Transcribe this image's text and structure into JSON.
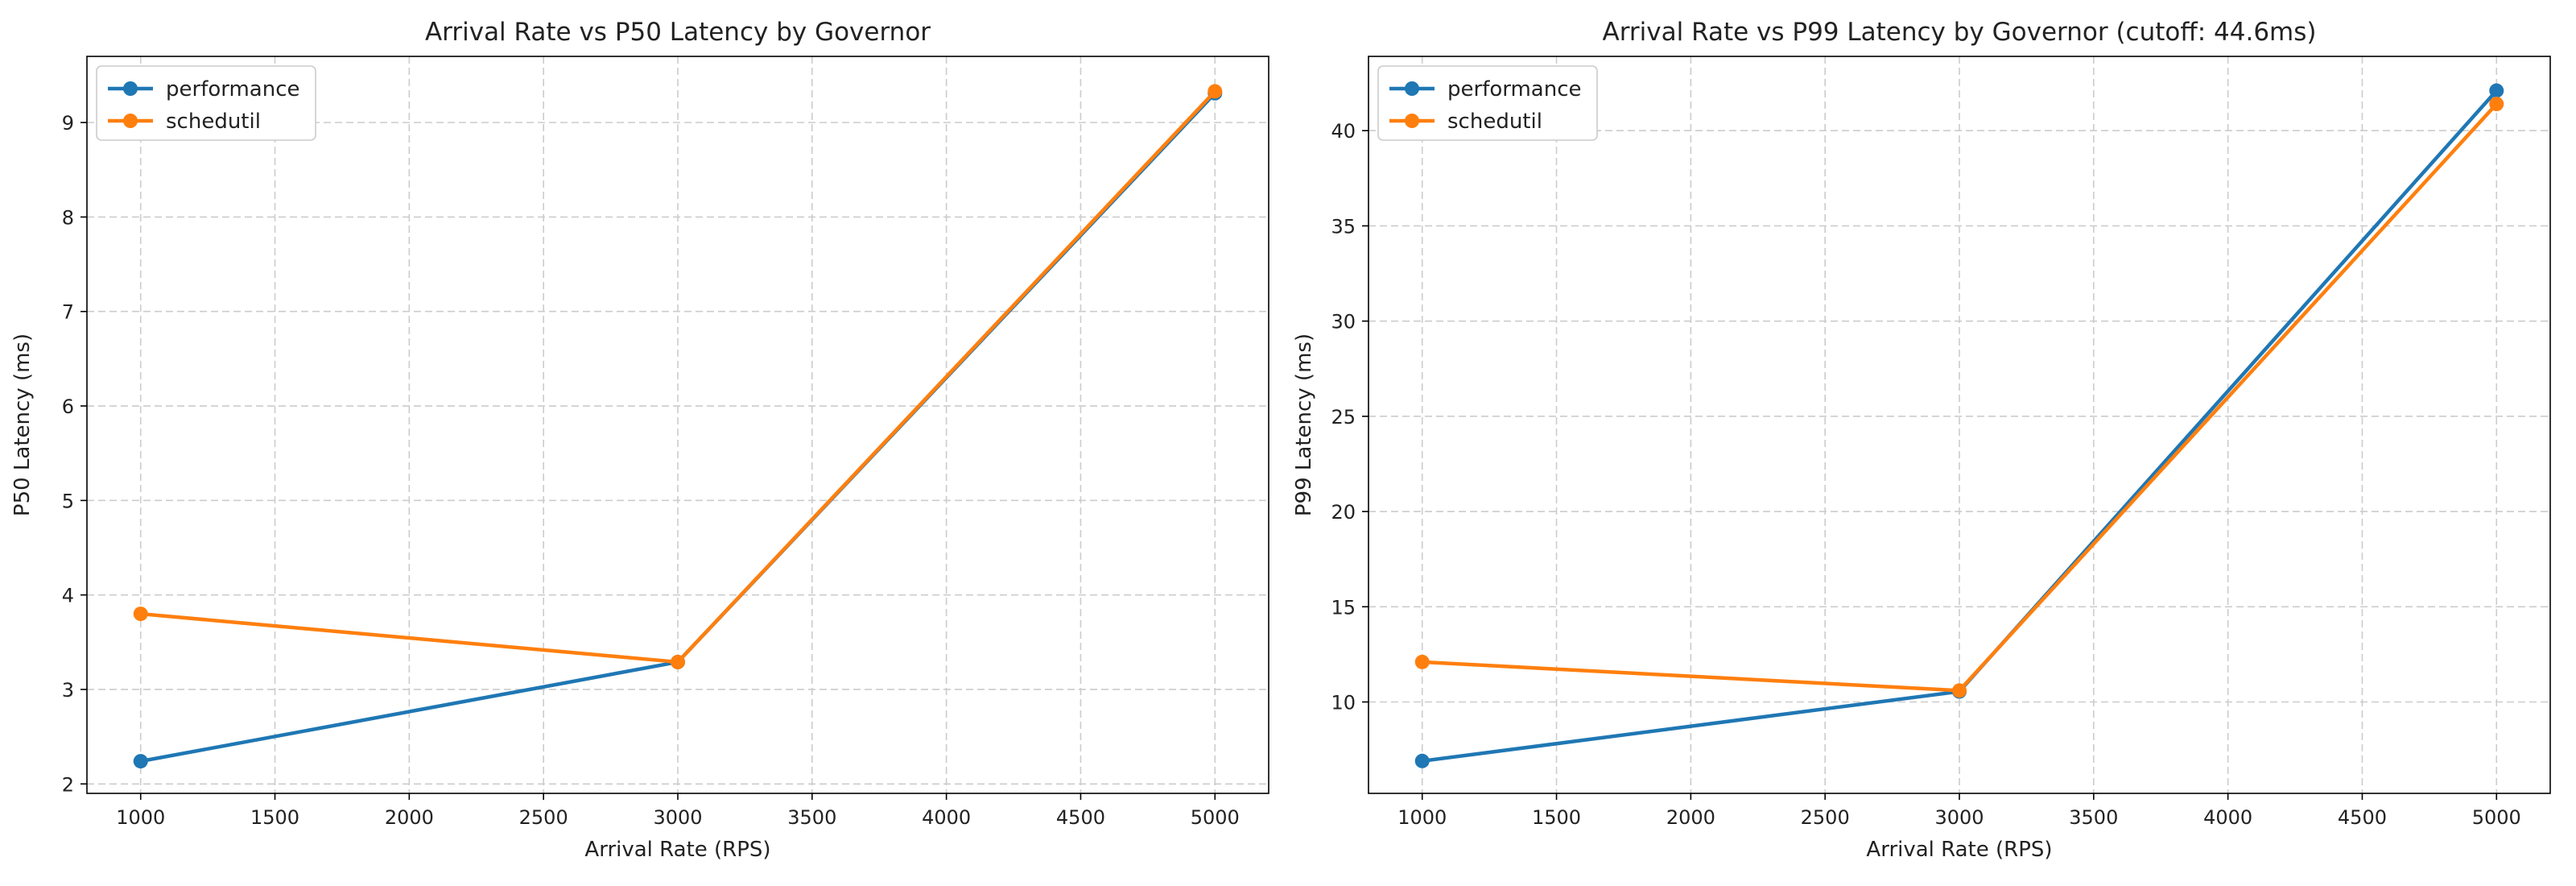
{
  "chart_data": [
    {
      "type": "line",
      "title": "Arrival Rate vs P50 Latency by Governor",
      "xlabel": "Arrival Rate (RPS)",
      "ylabel": "P50 Latency (ms)",
      "xlim": [
        800,
        5200
      ],
      "ylim": [
        1.9,
        9.7
      ],
      "xticks": [
        1000,
        1500,
        2000,
        2500,
        3000,
        3500,
        4000,
        4500,
        5000
      ],
      "yticks": [
        2,
        3,
        4,
        5,
        6,
        7,
        8,
        9
      ],
      "grid": true,
      "legend_position": "top-left",
      "x": [
        1000,
        3000,
        5000
      ],
      "series": [
        {
          "name": "performance",
          "color": "#1f77b4",
          "values": [
            2.24,
            3.29,
            9.31
          ]
        },
        {
          "name": "schedutil",
          "color": "#ff7f0e",
          "values": [
            3.8,
            3.29,
            9.33
          ]
        }
      ]
    },
    {
      "type": "line",
      "title": "Arrival Rate vs P99 Latency by Governor (cutoff: 44.6ms)",
      "xlabel": "Arrival Rate (RPS)",
      "ylabel": "P99 Latency (ms)",
      "xlim": [
        800,
        5200
      ],
      "ylim": [
        5.2,
        43.9
      ],
      "xticks": [
        1000,
        1500,
        2000,
        2500,
        3000,
        3500,
        4000,
        4500,
        5000
      ],
      "yticks": [
        10,
        15,
        20,
        25,
        30,
        35,
        40
      ],
      "grid": true,
      "legend_position": "top-left",
      "x": [
        1000,
        3000,
        5000
      ],
      "series": [
        {
          "name": "performance",
          "color": "#1f77b4",
          "values": [
            6.9,
            10.55,
            42.1
          ]
        },
        {
          "name": "schedutil",
          "color": "#ff7f0e",
          "values": [
            12.1,
            10.6,
            41.4
          ]
        }
      ]
    }
  ]
}
